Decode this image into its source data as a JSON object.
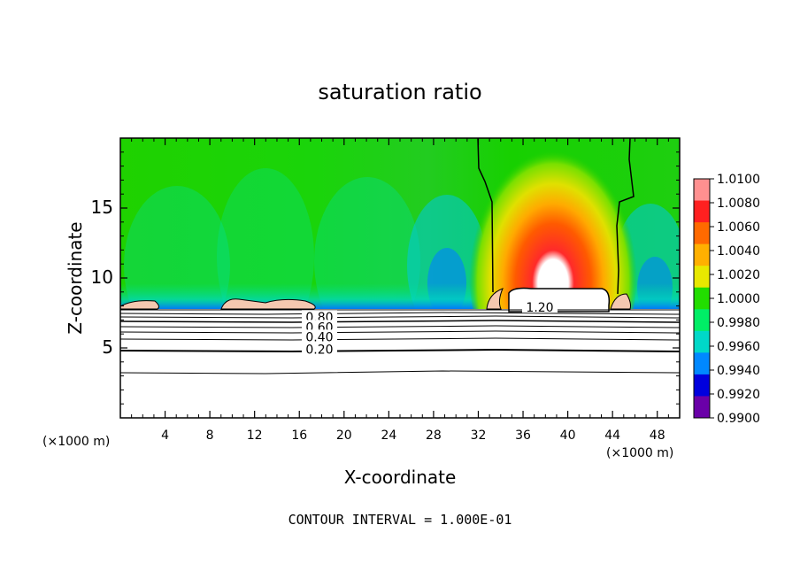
{
  "chart_data": {
    "type": "heatmap",
    "title": "saturation ratio",
    "xlabel": "X-coordinate",
    "ylabel": "Z-coordinate",
    "x_unit": "(×1000 m)",
    "z_unit": "(×1000 m)",
    "xlim": [
      0,
      50
    ],
    "ylim": [
      0,
      20
    ],
    "x_ticks": [
      4,
      8,
      12,
      16,
      20,
      24,
      28,
      32,
      36,
      40,
      44,
      48
    ],
    "y_ticks": [
      5,
      10,
      15
    ],
    "colorbar": {
      "values": [
        "1.0100",
        "1.0080",
        "1.0060",
        "1.0040",
        "1.0020",
        "1.0000",
        "0.9980",
        "0.9960",
        "0.9940",
        "0.9920",
        "0.9900"
      ],
      "colors": [
        "#ff9090",
        "#ff2020",
        "#ff6a00",
        "#ffb000",
        "#e8e800",
        "#22dd00",
        "#00ee66",
        "#00d8c8",
        "#0088ff",
        "#0000dd",
        "#6a00a8"
      ]
    },
    "contour_labels": [
      {
        "text": "0.80",
        "x": 17.8,
        "z": 7.2
      },
      {
        "text": "0.60",
        "x": 17.8,
        "z": 6.5
      },
      {
        "text": "0.40",
        "x": 17.8,
        "z": 5.8
      },
      {
        "text": "0.20",
        "x": 17.8,
        "z": 4.9
      },
      {
        "text": "1.20",
        "x": 37.5,
        "z": 7.9
      }
    ],
    "contour_interval_text": "CONTOUR INTERVAL = 1.000E-01"
  }
}
